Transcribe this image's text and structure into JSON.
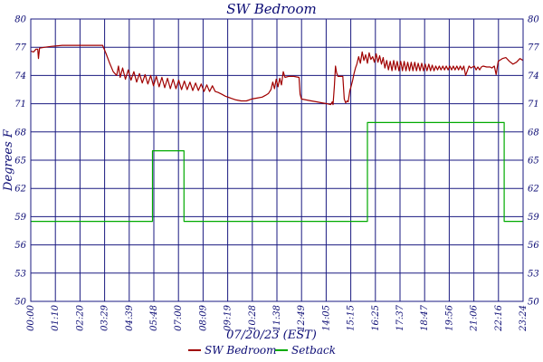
{
  "chart_data": {
    "type": "line",
    "title": "SW Bedroom",
    "xlabel": "07/20/23 (EST)",
    "ylabel": "Degrees F",
    "x_tick_labels": [
      "00:00",
      "01:10",
      "02:20",
      "03:29",
      "04:39",
      "05:48",
      "07:00",
      "08:09",
      "09:19",
      "10:28",
      "11:38",
      "12:49",
      "14:05",
      "15:15",
      "16:25",
      "17:37",
      "18:47",
      "19:56",
      "21:06",
      "22:16",
      "23:24"
    ],
    "x_range_minutes": [
      0,
      1404
    ],
    "y_tick_labels": [
      "80",
      "77",
      "74",
      "71",
      "68",
      "65",
      "62",
      "59",
      "56",
      "53",
      "50"
    ],
    "y_left_labels": [
      "80",
      "77",
      "74",
      "71",
      "68",
      "65",
      "62",
      "59",
      "56",
      "53",
      "50"
    ],
    "y_right_labels": [
      "80",
      "77",
      "74",
      "71",
      "68",
      "65",
      "62",
      "59",
      "56",
      "53",
      "50"
    ],
    "y_axis_ticks_displayed": [
      80,
      77,
      74,
      71,
      68,
      65,
      62,
      59,
      56,
      53,
      50
    ],
    "ylim": [
      50,
      80
    ],
    "grid": true,
    "legend_position": "bottom-center",
    "colors": {
      "background": "#ffffff",
      "grid": "#1a1a80",
      "text": "#0b0b74",
      "sw_bedroom": "#a00000",
      "setback": "#00aa00"
    },
    "series": [
      {
        "name": "SW Bedroom",
        "color": "#a00000",
        "points": [
          [
            0,
            76.6
          ],
          [
            8,
            76.5
          ],
          [
            15,
            76.8
          ],
          [
            20,
            76.8
          ],
          [
            22,
            75.8
          ],
          [
            25,
            76.9
          ],
          [
            40,
            77.0
          ],
          [
            60,
            77.1
          ],
          [
            90,
            77.2
          ],
          [
            120,
            77.2
          ],
          [
            150,
            77.2
          ],
          [
            180,
            77.2
          ],
          [
            205,
            77.2
          ],
          [
            215,
            76.3
          ],
          [
            225,
            75.3
          ],
          [
            235,
            74.4
          ],
          [
            245,
            74.0
          ],
          [
            250,
            75.0
          ],
          [
            255,
            73.8
          ],
          [
            262,
            74.8
          ],
          [
            270,
            73.6
          ],
          [
            278,
            74.6
          ],
          [
            286,
            73.5
          ],
          [
            294,
            74.4
          ],
          [
            302,
            73.3
          ],
          [
            310,
            74.2
          ],
          [
            318,
            73.2
          ],
          [
            326,
            74.1
          ],
          [
            334,
            73.1
          ],
          [
            342,
            74.0
          ],
          [
            350,
            72.9
          ],
          [
            358,
            73.9
          ],
          [
            366,
            72.8
          ],
          [
            374,
            73.8
          ],
          [
            382,
            72.7
          ],
          [
            390,
            73.7
          ],
          [
            398,
            72.6
          ],
          [
            406,
            73.6
          ],
          [
            414,
            72.6
          ],
          [
            422,
            73.5
          ],
          [
            430,
            72.5
          ],
          [
            438,
            73.4
          ],
          [
            446,
            72.5
          ],
          [
            454,
            73.3
          ],
          [
            462,
            72.4
          ],
          [
            470,
            73.2
          ],
          [
            478,
            72.4
          ],
          [
            486,
            73.1
          ],
          [
            494,
            72.3
          ],
          [
            502,
            73.0
          ],
          [
            510,
            72.3
          ],
          [
            518,
            72.9
          ],
          [
            526,
            72.3
          ],
          [
            534,
            72.2
          ],
          [
            545,
            72.0
          ],
          [
            555,
            71.8
          ],
          [
            570,
            71.6
          ],
          [
            585,
            71.4
          ],
          [
            600,
            71.3
          ],
          [
            615,
            71.3
          ],
          [
            630,
            71.5
          ],
          [
            645,
            71.6
          ],
          [
            660,
            71.7
          ],
          [
            670,
            71.9
          ],
          [
            678,
            72.1
          ],
          [
            685,
            72.5
          ],
          [
            690,
            73.3
          ],
          [
            695,
            72.6
          ],
          [
            700,
            73.6
          ],
          [
            705,
            72.8
          ],
          [
            710,
            73.7
          ],
          [
            715,
            73.0
          ],
          [
            720,
            74.4
          ],
          [
            725,
            73.8
          ],
          [
            735,
            73.9
          ],
          [
            750,
            73.9
          ],
          [
            765,
            73.8
          ],
          [
            768,
            72.0
          ],
          [
            772,
            71.5
          ],
          [
            785,
            71.4
          ],
          [
            800,
            71.3
          ],
          [
            815,
            71.2
          ],
          [
            830,
            71.1
          ],
          [
            845,
            71.0
          ],
          [
            855,
            70.9
          ],
          [
            860,
            71.2
          ],
          [
            862,
            70.9
          ],
          [
            866,
            72.9
          ],
          [
            869,
            75.0
          ],
          [
            872,
            74.3
          ],
          [
            876,
            73.9
          ],
          [
            885,
            73.9
          ],
          [
            890,
            73.9
          ],
          [
            894,
            71.5
          ],
          [
            898,
            71.1
          ],
          [
            902,
            71.3
          ],
          [
            905,
            71.2
          ],
          [
            910,
            72.4
          ],
          [
            914,
            72.9
          ],
          [
            918,
            73.5
          ],
          [
            922,
            74.2
          ],
          [
            926,
            74.8
          ],
          [
            930,
            75.2
          ],
          [
            935,
            76.0
          ],
          [
            940,
            75.3
          ],
          [
            945,
            76.5
          ],
          [
            950,
            75.6
          ],
          [
            955,
            76.2
          ],
          [
            960,
            75.3
          ],
          [
            965,
            76.4
          ],
          [
            970,
            75.7
          ],
          [
            975,
            76.0
          ],
          [
            980,
            75.4
          ],
          [
            985,
            76.3
          ],
          [
            990,
            75.4
          ],
          [
            995,
            76.1
          ],
          [
            1000,
            75.2
          ],
          [
            1005,
            75.9
          ],
          [
            1010,
            74.8
          ],
          [
            1015,
            75.6
          ],
          [
            1020,
            74.6
          ],
          [
            1025,
            75.5
          ],
          [
            1030,
            74.5
          ],
          [
            1035,
            75.6
          ],
          [
            1040,
            74.6
          ],
          [
            1045,
            75.5
          ],
          [
            1050,
            74.5
          ],
          [
            1055,
            75.5
          ],
          [
            1060,
            74.5
          ],
          [
            1065,
            75.5
          ],
          [
            1070,
            74.5
          ],
          [
            1075,
            75.4
          ],
          [
            1080,
            74.5
          ],
          [
            1085,
            75.4
          ],
          [
            1090,
            74.5
          ],
          [
            1095,
            75.4
          ],
          [
            1100,
            74.5
          ],
          [
            1105,
            75.3
          ],
          [
            1110,
            74.5
          ],
          [
            1115,
            75.3
          ],
          [
            1120,
            74.5
          ],
          [
            1125,
            75.2
          ],
          [
            1130,
            74.5
          ],
          [
            1135,
            75.2
          ],
          [
            1140,
            74.5
          ],
          [
            1145,
            75.1
          ],
          [
            1150,
            74.5
          ],
          [
            1155,
            75.0
          ],
          [
            1160,
            74.6
          ],
          [
            1165,
            75.0
          ],
          [
            1170,
            74.6
          ],
          [
            1175,
            75.0
          ],
          [
            1180,
            74.6
          ],
          [
            1185,
            75.0
          ],
          [
            1190,
            74.6
          ],
          [
            1195,
            75.0
          ],
          [
            1200,
            74.6
          ],
          [
            1205,
            75.0
          ],
          [
            1210,
            74.6
          ],
          [
            1215,
            75.0
          ],
          [
            1220,
            74.6
          ],
          [
            1225,
            75.0
          ],
          [
            1230,
            74.6
          ],
          [
            1235,
            75.0
          ],
          [
            1240,
            74.0
          ],
          [
            1245,
            74.5
          ],
          [
            1250,
            75.0
          ],
          [
            1255,
            74.8
          ],
          [
            1260,
            74.9
          ],
          [
            1265,
            75.0
          ],
          [
            1270,
            74.6
          ],
          [
            1275,
            74.9
          ],
          [
            1280,
            74.6
          ],
          [
            1285,
            74.9
          ],
          [
            1290,
            75.0
          ],
          [
            1300,
            74.9
          ],
          [
            1310,
            74.9
          ],
          [
            1315,
            74.8
          ],
          [
            1322,
            75.0
          ],
          [
            1327,
            74.1
          ],
          [
            1333,
            75.5
          ],
          [
            1345,
            75.8
          ],
          [
            1355,
            75.9
          ],
          [
            1365,
            75.5
          ],
          [
            1375,
            75.2
          ],
          [
            1385,
            75.4
          ],
          [
            1395,
            75.8
          ],
          [
            1404,
            75.6
          ]
        ]
      },
      {
        "name": "Setback",
        "color": "#00aa00",
        "points": [
          [
            0,
            58.5
          ],
          [
            347,
            58.5
          ],
          [
            347,
            66.0
          ],
          [
            437,
            66.0
          ],
          [
            437,
            58.5
          ],
          [
            960,
            58.5
          ],
          [
            960,
            69.0
          ],
          [
            1350,
            69.0
          ],
          [
            1350,
            58.5
          ],
          [
            1404,
            58.5
          ]
        ]
      }
    ]
  }
}
